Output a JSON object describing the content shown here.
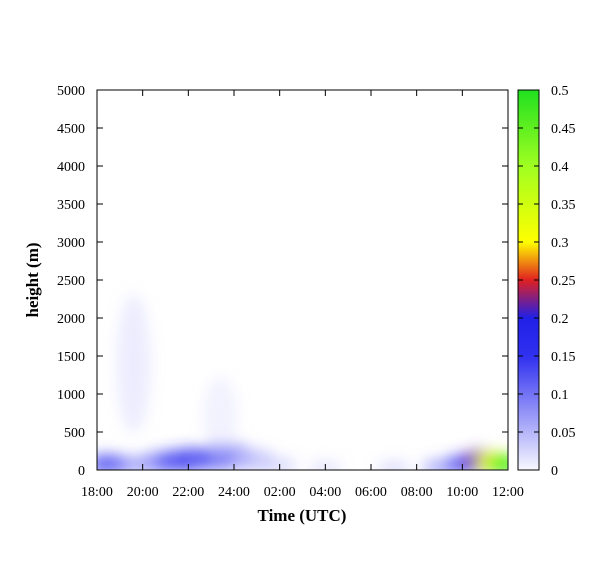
{
  "chart_data": {
    "type": "heatmap",
    "title": "",
    "xlabel": "Time (UTC)",
    "ylabel": "height (m)",
    "x_ticks": [
      "18:00",
      "20:00",
      "22:00",
      "24:00",
      "02:00",
      "04:00",
      "06:00",
      "08:00",
      "10:00",
      "12:00"
    ],
    "xlim": [
      0,
      18
    ],
    "ylim": [
      0,
      5000
    ],
    "y_ticks": [
      "0",
      "500",
      "1000",
      "1500",
      "2000",
      "2500",
      "3000",
      "3500",
      "4000",
      "4500",
      "5000"
    ],
    "y_tick_values": [
      0,
      500,
      1000,
      1500,
      2000,
      2500,
      3000,
      3500,
      4000,
      4500,
      5000
    ],
    "colorbar": {
      "range": [
        0,
        0.5
      ],
      "ticks": [
        "0",
        "0.05",
        "0.1",
        "0.15",
        "0.2",
        "0.25",
        "0.3",
        "0.35",
        "0.4",
        "0.45",
        "0.5"
      ],
      "tick_values": [
        0,
        0.05,
        0.1,
        0.15,
        0.2,
        0.25,
        0.3,
        0.35,
        0.4,
        0.45,
        0.5
      ],
      "stops": [
        {
          "value": 0.0,
          "color": "#f8f8ff"
        },
        {
          "value": 0.15,
          "color": "#3030f0"
        },
        {
          "value": 0.2,
          "color": "#2020e8"
        },
        {
          "value": 0.25,
          "color": "#e02020"
        },
        {
          "value": 0.3,
          "color": "#ffff00"
        },
        {
          "value": 0.4,
          "color": "#a0ff20"
        },
        {
          "value": 0.5,
          "color": "#20e020"
        }
      ]
    },
    "grid": false,
    "features": [
      {
        "x": 0.2,
        "y": 80,
        "value": 0.12
      },
      {
        "x": 0.6,
        "y": 80,
        "value": 0.14
      },
      {
        "x": 1.4,
        "y": 70,
        "value": 0.1
      },
      {
        "x": 2.6,
        "y": 100,
        "value": 0.12
      },
      {
        "x": 3.4,
        "y": 120,
        "value": 0.15
      },
      {
        "x": 4.2,
        "y": 140,
        "value": 0.16
      },
      {
        "x": 5.2,
        "y": 170,
        "value": 0.14
      },
      {
        "x": 6.0,
        "y": 180,
        "value": 0.1
      },
      {
        "x": 7.0,
        "y": 130,
        "value": 0.07
      },
      {
        "x": 8.0,
        "y": 60,
        "value": 0.05
      },
      {
        "x": 10.0,
        "y": 20,
        "value": 0.04
      },
      {
        "x": 13.0,
        "y": 20,
        "value": 0.05
      },
      {
        "x": 15.0,
        "y": 40,
        "value": 0.1
      },
      {
        "x": 16.0,
        "y": 80,
        "value": 0.16
      },
      {
        "x": 16.8,
        "y": 120,
        "value": 0.22
      },
      {
        "x": 17.4,
        "y": 100,
        "value": 0.3
      },
      {
        "x": 17.8,
        "y": 80,
        "value": 0.45
      },
      {
        "x": 1.6,
        "y": 1400,
        "value": 0.03
      },
      {
        "x": 5.4,
        "y": 720,
        "value": 0.02
      }
    ]
  }
}
